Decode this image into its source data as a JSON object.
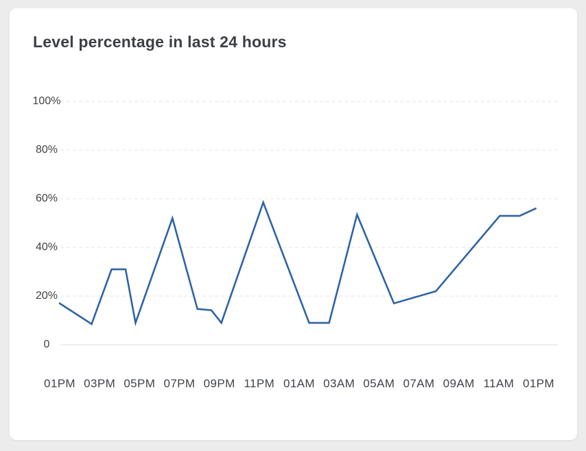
{
  "card": {
    "title": "Level percentage in last 24 hours"
  },
  "chart_data": {
    "type": "line",
    "title": "Level percentage in last 24 hours",
    "xlabel": "",
    "ylabel": "",
    "ylim": [
      0,
      100
    ],
    "xlim_hours": [
      0,
      25
    ],
    "grid": "horizontal-dashed",
    "legend": "none",
    "line_color": "#2d63a5",
    "grid_color": "#e4e4e4",
    "zero_line_color": "#dcdcdc",
    "y_ticks": [
      {
        "label": "100%",
        "value": 100
      },
      {
        "label": "80%",
        "value": 80
      },
      {
        "label": "60%",
        "value": 60
      },
      {
        "label": "40%",
        "value": 40
      },
      {
        "label": "20%",
        "value": 20
      },
      {
        "label": "0",
        "value": 0
      }
    ],
    "x_ticks": [
      {
        "label": "01PM",
        "hour": 0
      },
      {
        "label": "03PM",
        "hour": 2
      },
      {
        "label": "05PM",
        "hour": 4
      },
      {
        "label": "07PM",
        "hour": 6
      },
      {
        "label": "09PM",
        "hour": 8
      },
      {
        "label": "11PM",
        "hour": 10
      },
      {
        "label": "01AM",
        "hour": 12
      },
      {
        "label": "03AM",
        "hour": 14
      },
      {
        "label": "05AM",
        "hour": 16
      },
      {
        "label": "07AM",
        "hour": 18
      },
      {
        "label": "09AM",
        "hour": 20
      },
      {
        "label": "11AM",
        "hour": 22
      },
      {
        "label": "01PM",
        "hour": 24
      }
    ],
    "series": [
      {
        "name": "Level percentage",
        "points": [
          {
            "hour": 0,
            "value": 17
          },
          {
            "hour": 1.6,
            "value": 8.5
          },
          {
            "hour": 2.6,
            "value": 31
          },
          {
            "hour": 3.3,
            "value": 31
          },
          {
            "hour": 3.8,
            "value": 9
          },
          {
            "hour": 5.65,
            "value": 52
          },
          {
            "hour": 6.9,
            "value": 14.7
          },
          {
            "hour": 7.6,
            "value": 14.2
          },
          {
            "hour": 8.1,
            "value": 9
          },
          {
            "hour": 10.2,
            "value": 58.5
          },
          {
            "hour": 12.5,
            "value": 9
          },
          {
            "hour": 13.5,
            "value": 9
          },
          {
            "hour": 14.9,
            "value": 53.5
          },
          {
            "hour": 16.75,
            "value": 17
          },
          {
            "hour": 18.85,
            "value": 22
          },
          {
            "hour": 22.05,
            "value": 53
          },
          {
            "hour": 23.05,
            "value": 53
          },
          {
            "hour": 23.85,
            "value": 56
          }
        ]
      }
    ]
  }
}
